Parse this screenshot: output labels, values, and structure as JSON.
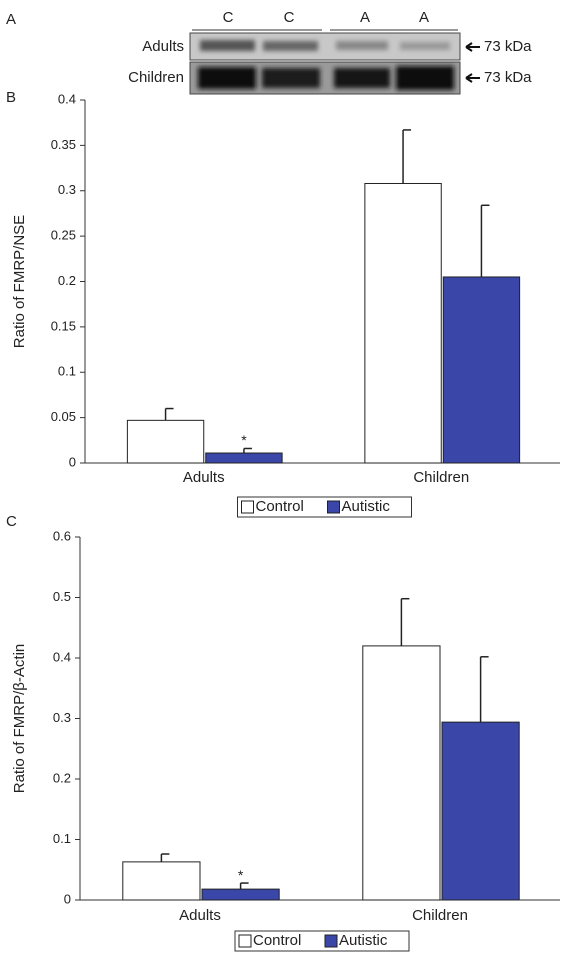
{
  "blot": {
    "panel_label": "A",
    "lanes": [
      "C",
      "C",
      "A",
      "A"
    ],
    "rows": [
      "Adults",
      "Children"
    ],
    "size_labels": [
      "73 kDa",
      "73 kDa"
    ]
  },
  "chart_data": [
    {
      "type": "bar",
      "panel_label": "B",
      "y_label": "Ratio of FMRP/NSE",
      "categories": [
        "Adults",
        "Children"
      ],
      "series": [
        {
          "name": "Control",
          "color": "#ffffff",
          "values": [
            0.047,
            0.308
          ],
          "errors": [
            0.013,
            0.059
          ]
        },
        {
          "name": "Autistic",
          "color": "#3a46a8",
          "values": [
            0.011,
            0.205
          ],
          "errors": [
            0.005,
            0.079
          ]
        }
      ],
      "annotation": "*",
      "ylim": [
        0,
        0.4
      ],
      "yticks": [
        0,
        0.05,
        0.1,
        0.15,
        0.2,
        0.25,
        0.3,
        0.35,
        0.4
      ],
      "grid": false,
      "legend": "bottom"
    },
    {
      "type": "bar",
      "panel_label": "C",
      "y_label": "Ratio of FMRP/β-Actin",
      "categories": [
        "Adults",
        "Children"
      ],
      "series": [
        {
          "name": "Control",
          "color": "#ffffff",
          "values": [
            0.063,
            0.42
          ],
          "errors": [
            0.013,
            0.078
          ]
        },
        {
          "name": "Autistic",
          "color": "#3a46a8",
          "values": [
            0.018,
            0.294
          ],
          "errors": [
            0.01,
            0.108
          ]
        }
      ],
      "annotation": "*",
      "ylim": [
        0,
        0.6
      ],
      "yticks": [
        0,
        0.1,
        0.2,
        0.3,
        0.4,
        0.5,
        0.6
      ],
      "grid": false,
      "legend": "bottom"
    }
  ]
}
